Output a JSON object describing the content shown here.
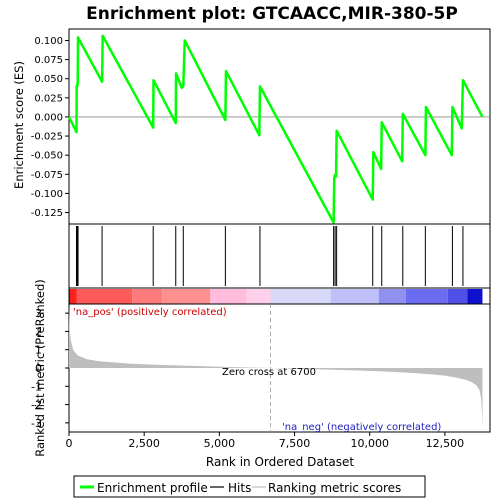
{
  "chart_data": {
    "type": "line",
    "title": "Enrichment plot: GTCAACC,MIR-380-5P",
    "top_panel": {
      "ylabel": "Enrichment score (ES)",
      "ylim": [
        -0.14,
        0.115
      ],
      "yticks": [
        -0.125,
        -0.1,
        -0.075,
        -0.05,
        -0.025,
        0.0,
        0.025,
        0.05,
        0.075,
        0.1
      ],
      "ytick_labels": [
        "-0.125",
        "-0.100",
        "-0.075",
        "-0.050",
        "-0.025",
        "0.000",
        "0.025",
        "0.050",
        "0.075",
        "0.100"
      ],
      "line_color": "#00ff00",
      "series": [
        {
          "x": [
            0,
            250,
            255,
            270,
            275,
            290,
            300,
            1100,
            1120,
            2800,
            2810,
            3550,
            3560,
            3750,
            3800,
            3850,
            5200,
            5220,
            6330,
            6350,
            8800,
            8820,
            8850,
            8880,
            8900,
            10100,
            10120,
            10380,
            10400,
            11080,
            11100,
            11850,
            11870,
            12730,
            12750,
            13060,
            13100,
            13750
          ],
          "y": [
            0,
            -0.02,
            0.04,
            0.042,
            0.04,
            0.044,
            0.104,
            0.046,
            0.106,
            -0.014,
            0.048,
            -0.008,
            0.057,
            0.038,
            0.04,
            0.1,
            -0.004,
            0.06,
            -0.024,
            0.04,
            -0.138,
            -0.08,
            -0.076,
            -0.078,
            -0.018,
            -0.108,
            -0.046,
            -0.068,
            -0.007,
            -0.058,
            0.004,
            -0.05,
            0.013,
            -0.05,
            0.013,
            -0.015,
            0.048,
            0.0
          ]
        }
      ]
    },
    "hits": [
      250,
      275,
      300,
      1100,
      2800,
      3550,
      3800,
      5200,
      6350,
      8800,
      8850,
      8900,
      10100,
      10400,
      11100,
      11850,
      12750,
      13100
    ],
    "bottom_panel": {
      "ylabel": "Ranked list metric (PreRanked)",
      "xlabel": "Rank in Ordered Dataset",
      "xlim": [
        0,
        14000
      ],
      "ylim": [
        -3.5,
        3.5
      ],
      "xticks": [
        0,
        2500,
        5000,
        7500,
        10000,
        12500
      ],
      "xtick_labels": [
        "0",
        "2,500",
        "5,000",
        "7,500",
        "10,000",
        "12,500"
      ],
      "yticks": [
        -3,
        -2,
        -1,
        0,
        1,
        2,
        3
      ],
      "ytick_labels": [
        "-3",
        "-2",
        "-1",
        "0",
        "1",
        "2",
        "3"
      ],
      "n_genes": 13750,
      "zero_cross": 6700,
      "metric_profile": {
        "x": [
          0,
          20,
          60,
          150,
          300,
          600,
          1000,
          2000,
          3000,
          4000,
          5000,
          6000,
          6700,
          7500,
          8500,
          9500,
          10500,
          11500,
          12000,
          12500,
          12900,
          13200,
          13400,
          13550,
          13650,
          13700,
          13730,
          13750
        ],
        "y": [
          3.4,
          2.1,
          1.5,
          0.95,
          0.68,
          0.48,
          0.37,
          0.24,
          0.17,
          0.12,
          0.07,
          0.03,
          0.0,
          -0.04,
          -0.08,
          -0.13,
          -0.19,
          -0.28,
          -0.34,
          -0.42,
          -0.53,
          -0.64,
          -0.78,
          -0.95,
          -1.2,
          -1.6,
          -2.4,
          -3.4
        ]
      },
      "fill_color": "#bebebe",
      "labels": {
        "pos": "'na_pos' (positively correlated)",
        "neg": "'na_neg' (negatively correlated)",
        "zero": "Zero cross at 6700"
      }
    },
    "colorbar": {
      "x": [
        0,
        14000
      ],
      "segments": [
        {
          "from": 0,
          "to": 60,
          "color": "#e60000"
        },
        {
          "from": 60,
          "to": 250,
          "color": "#ff2020"
        },
        {
          "from": 250,
          "to": 2100,
          "color": "#ff5a5a"
        },
        {
          "from": 2100,
          "to": 3100,
          "color": "#ff7a7a"
        },
        {
          "from": 3100,
          "to": 4700,
          "color": "#ff9090"
        },
        {
          "from": 4700,
          "to": 5900,
          "color": "#ffbcdc"
        },
        {
          "from": 5900,
          "to": 6700,
          "color": "#ffd0ea"
        },
        {
          "from": 6700,
          "to": 8700,
          "color": "#d8d8f8"
        },
        {
          "from": 8700,
          "to": 10300,
          "color": "#c0c0f8"
        },
        {
          "from": 10300,
          "to": 11200,
          "color": "#9090f0"
        },
        {
          "from": 11200,
          "to": 12600,
          "color": "#6c6cf0"
        },
        {
          "from": 12600,
          "to": 13250,
          "color": "#5050e8"
        },
        {
          "from": 13250,
          "to": 13750,
          "color": "#1010d0"
        },
        {
          "from": 13750,
          "to": 14000,
          "color": "#ffffff"
        }
      ]
    },
    "legend": {
      "placement": "bottom",
      "items": [
        {
          "label": "Enrichment profile",
          "color": "#00ff00",
          "kind": "thick-line"
        },
        {
          "label": "Hits",
          "color": "#000000",
          "kind": "thin-line"
        },
        {
          "label": "Ranking metric scores",
          "color": "#bebebe",
          "kind": "thin-line"
        }
      ]
    },
    "grid": false
  }
}
